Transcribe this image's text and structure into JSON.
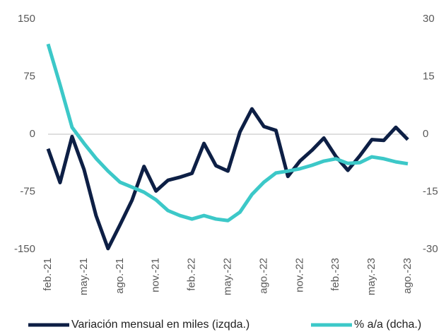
{
  "chart_data": {
    "type": "line",
    "categories": [
      "feb.-21",
      null,
      null,
      "may.-21",
      null,
      null,
      "ago.-21",
      null,
      null,
      "nov.-21",
      null,
      null,
      "feb.-22",
      null,
      null,
      "may.-22",
      null,
      null,
      "ago.-22",
      null,
      null,
      "nov.-22",
      null,
      null,
      "feb.-23",
      null,
      null,
      "may.-23",
      null,
      null,
      "ago.-23"
    ],
    "series": [
      {
        "name": "Variación mensual en miles (izqda.)",
        "color": "#0d1f45",
        "values": [
          -19,
          -63,
          -3,
          -46,
          -106,
          -149,
          -118,
          -86,
          -42,
          -74,
          -60,
          -56,
          -51,
          -12,
          -41,
          -48,
          3,
          33,
          10,
          5,
          -55,
          -35,
          -21,
          -5,
          -29,
          -47,
          -28,
          -7,
          -8,
          9,
          -7
        ]
      },
      {
        "name": "% a/a (dcha.)",
        "color": "#3cc8c8",
        "axis": "y2",
        "values": [
          23.5,
          12.9,
          1.8,
          -2.4,
          -6.3,
          -9.6,
          -12.5,
          -13.8,
          -15.1,
          -17.1,
          -19.9,
          -21.2,
          -22.1,
          -21.2,
          -22.1,
          -22.5,
          -20.3,
          -15.7,
          -12.5,
          -10.1,
          -9.6,
          -9.0,
          -8.1,
          -7.0,
          -6.4,
          -7.6,
          -7.4,
          -5.9,
          -6.4,
          -7.2,
          -7.7
        ]
      }
    ],
    "ylim": [
      -150,
      150
    ],
    "yticks": [
      150,
      75,
      0,
      -75,
      -150
    ],
    "y2lim": [
      -30,
      30
    ],
    "y2ticks": [
      30,
      15,
      0,
      -15,
      -30
    ],
    "legend": "bottom"
  }
}
